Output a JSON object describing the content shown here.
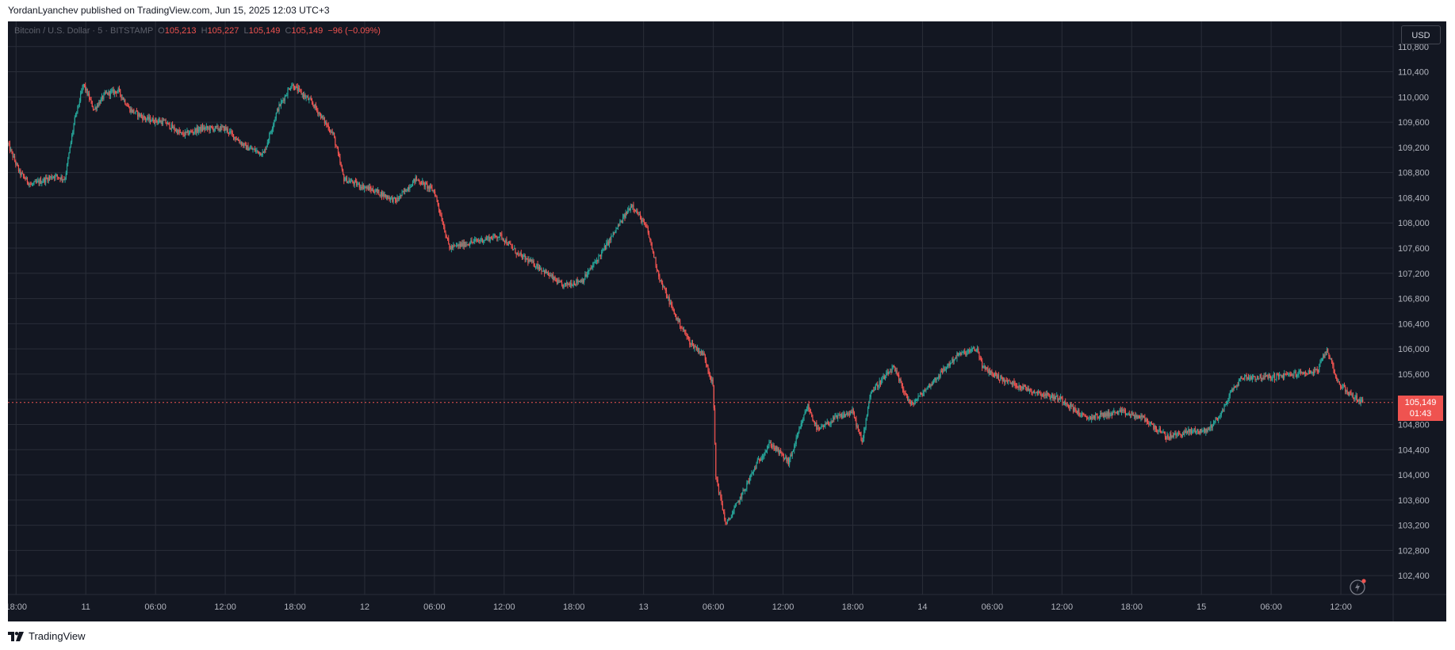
{
  "header": {
    "publisher_line": "YordanLyanchev published on TradingView.com, Jun 15, 2025 12:03 UTC+3"
  },
  "legend": {
    "symbol": "Bitcoin / U.S. Dollar · 5 · BITSTAMP",
    "open_prefix": "O",
    "open": "105,213",
    "high_prefix": "H",
    "high": "105,227",
    "low_prefix": "L",
    "low": "105,149",
    "close_prefix": "C",
    "close": "105,149",
    "change": "−96 (−0.09%)"
  },
  "currency_button": "USD",
  "last_price": {
    "price": "105,149",
    "countdown": "01:43"
  },
  "footer": {
    "brand": "TradingView"
  },
  "colors": {
    "background": "#131722",
    "grid": "#2a2e39",
    "up": "#26a69a",
    "down": "#ef5350",
    "axis_text": "#b2b5be"
  },
  "icons": {
    "logo": "tradingview-logo-icon",
    "replay": "lightning-replay-icon"
  },
  "chart_data": {
    "type": "candlestick",
    "title": "Bitcoin / U.S. Dollar · 5 · BITSTAMP",
    "xlabel": "",
    "ylabel": "",
    "grid": true,
    "y_ticks": [
      110800,
      110400,
      110000,
      109600,
      109200,
      108800,
      108400,
      108000,
      107600,
      107200,
      106800,
      106400,
      106000,
      105600,
      105200,
      104800,
      104400,
      104000,
      103600,
      103200,
      102800,
      102400
    ],
    "y_tick_labels": [
      "110,800",
      "110,400",
      "110,000",
      "109,600",
      "109,200",
      "108,800",
      "108,400",
      "108,000",
      "107,600",
      "107,200",
      "106,800",
      "106,400",
      "106,000",
      "105,600",
      "105,200",
      "104,800",
      "104,400",
      "104,000",
      "103,600",
      "103,200",
      "102,800",
      "102,400"
    ],
    "ylim": [
      102100,
      111200
    ],
    "x_tick_labels": [
      "18:00",
      "11",
      "06:00",
      "12:00",
      "18:00",
      "12",
      "06:00",
      "12:00",
      "18:00",
      "13",
      "06:00",
      "12:00",
      "18:00",
      "14",
      "06:00",
      "12:00",
      "18:00",
      "15",
      "06:00",
      "12:00"
    ],
    "x_tick_hours": [
      0,
      6,
      12,
      18,
      24,
      30,
      36,
      42,
      48,
      54,
      60,
      66,
      72,
      78,
      84,
      90,
      96,
      102,
      108,
      114
    ],
    "x_range_hours": [
      -0.7,
      118.5
    ],
    "time_note": "hours from Jun 10 18:00",
    "last_price": 105149,
    "price_path": [
      [
        -0.7,
        109250
      ],
      [
        0.3,
        108800
      ],
      [
        1.3,
        108600
      ],
      [
        3.3,
        108750
      ],
      [
        4.2,
        108700
      ],
      [
        5.0,
        109600
      ],
      [
        5.8,
        110200
      ],
      [
        6.7,
        109800
      ],
      [
        7.7,
        110050
      ],
      [
        8.8,
        110100
      ],
      [
        9.8,
        109800
      ],
      [
        11.2,
        109650
      ],
      [
        12.8,
        109600
      ],
      [
        14.3,
        109400
      ],
      [
        16.0,
        109500
      ],
      [
        18.0,
        109500
      ],
      [
        19.8,
        109200
      ],
      [
        21.3,
        109100
      ],
      [
        22.5,
        109800
      ],
      [
        23.7,
        110200
      ],
      [
        25.5,
        109900
      ],
      [
        27.3,
        109400
      ],
      [
        28.2,
        108700
      ],
      [
        29.5,
        108600
      ],
      [
        31.0,
        108500
      ],
      [
        32.7,
        108350
      ],
      [
        34.4,
        108700
      ],
      [
        36.0,
        108500
      ],
      [
        37.3,
        107600
      ],
      [
        39.3,
        107700
      ],
      [
        41.7,
        107800
      ],
      [
        43.2,
        107500
      ],
      [
        45.0,
        107300
      ],
      [
        47.0,
        107000
      ],
      [
        48.8,
        107100
      ],
      [
        50.3,
        107500
      ],
      [
        52.0,
        108000
      ],
      [
        53.0,
        108300
      ],
      [
        54.3,
        107900
      ],
      [
        55.4,
        107100
      ],
      [
        56.8,
        106500
      ],
      [
        58.0,
        106100
      ],
      [
        59.2,
        105900
      ],
      [
        60.0,
        105400
      ],
      [
        60.2,
        104000
      ],
      [
        61.1,
        103200
      ],
      [
        62.5,
        103700
      ],
      [
        63.8,
        104200
      ],
      [
        64.9,
        104500
      ],
      [
        66.5,
        104200
      ],
      [
        67.4,
        104700
      ],
      [
        68.1,
        105100
      ],
      [
        69.0,
        104700
      ],
      [
        70.5,
        104900
      ],
      [
        72.0,
        105000
      ],
      [
        72.8,
        104500
      ],
      [
        73.5,
        105300
      ],
      [
        75.5,
        105700
      ],
      [
        77.0,
        105100
      ],
      [
        79.0,
        105500
      ],
      [
        81.0,
        105900
      ],
      [
        82.7,
        106000
      ],
      [
        83.2,
        105700
      ],
      [
        85.0,
        105500
      ],
      [
        88.0,
        105300
      ],
      [
        90.0,
        105200
      ],
      [
        92.0,
        104900
      ],
      [
        95.0,
        105000
      ],
      [
        97.0,
        104900
      ],
      [
        99.0,
        104600
      ],
      [
        101.3,
        104700
      ],
      [
        102.5,
        104700
      ],
      [
        103.8,
        105000
      ],
      [
        104.5,
        105300
      ],
      [
        105.5,
        105550
      ],
      [
        108.0,
        105550
      ],
      [
        110.0,
        105600
      ],
      [
        112.0,
        105650
      ],
      [
        112.8,
        106000
      ],
      [
        113.8,
        105450
      ],
      [
        115.0,
        105250
      ],
      [
        115.9,
        105150
      ]
    ]
  }
}
